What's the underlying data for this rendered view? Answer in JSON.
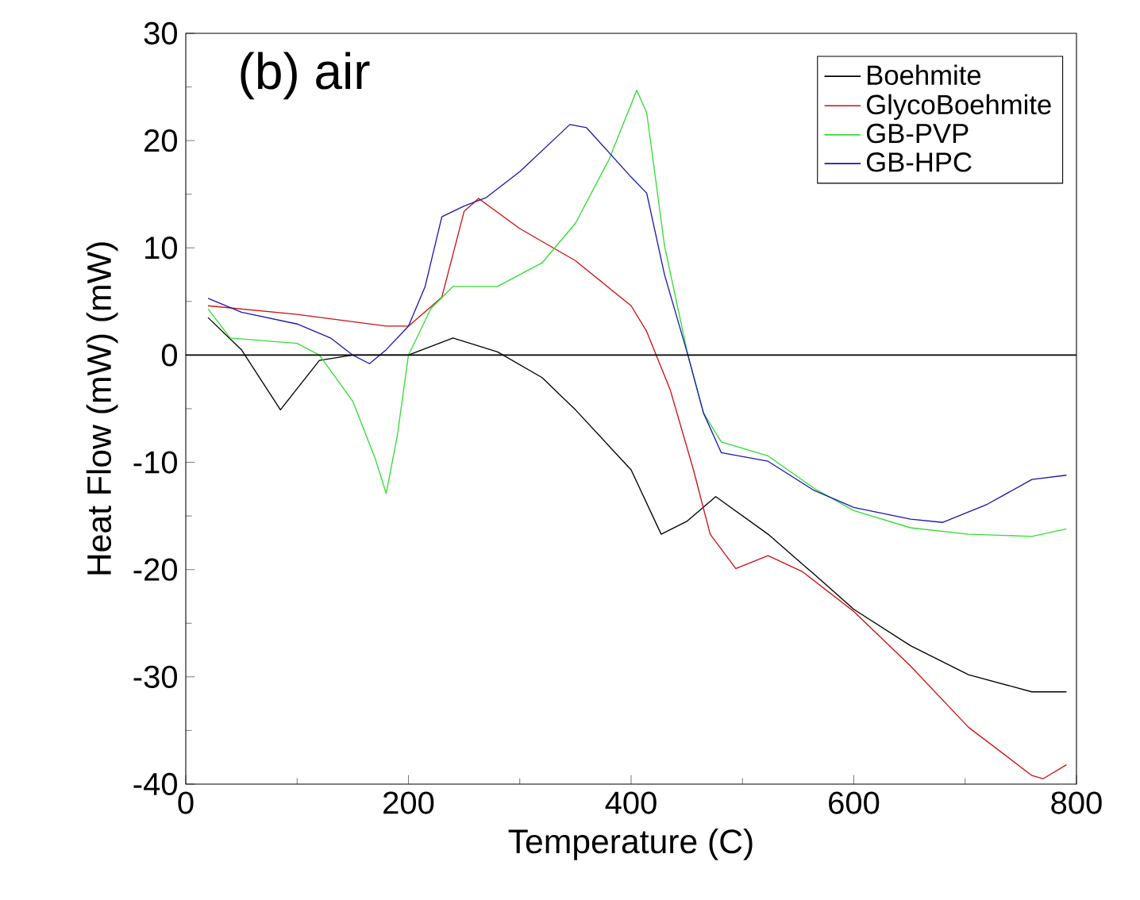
{
  "chart_data": {
    "type": "line",
    "xlabel": "Temperature (C)",
    "ylabel": "Heat Flow (mW) (mW)",
    "annotations": [
      "(b)  air"
    ],
    "xlim": [
      0,
      800
    ],
    "xticks": [
      0,
      200,
      400,
      600,
      800
    ],
    "ylim": [
      -40,
      30
    ],
    "yticks": [
      -40,
      -30,
      -20,
      -10,
      0,
      10,
      20,
      30
    ],
    "grid": false,
    "legend": "top right",
    "marker": "none",
    "line_style": "solid",
    "ref_lines": [
      {
        "axis": "y",
        "value": 0,
        "color": "#000000"
      }
    ],
    "series": [
      {
        "name": "Boehmite",
        "color": "#000000",
        "x": [
          20,
          50,
          85,
          120,
          150,
          200,
          240,
          280,
          320,
          350,
          400,
          427,
          450,
          476,
          523,
          564,
          600,
          651,
          703,
          760,
          791
        ],
        "values": [
          3.5,
          0.5,
          -5.1,
          -0.5,
          0,
          0,
          1.6,
          0.3,
          -2.1,
          -5.1,
          -10.7,
          -16.7,
          -15.5,
          -13.2,
          -16.7,
          -20.4,
          -23.7,
          -27.1,
          -29.8,
          -31.4,
          -31.4
        ]
      },
      {
        "name": "GlycoBoehmite",
        "color": "#cc1111",
        "x": [
          20,
          100,
          180,
          200,
          230,
          250,
          263,
          300,
          350,
          400,
          414,
          435,
          456,
          471,
          494,
          523,
          554,
          600,
          651,
          703,
          760,
          770,
          791
        ],
        "values": [
          4.6,
          3.8,
          2.7,
          2.7,
          5.4,
          13.4,
          14.6,
          11.8,
          8.8,
          4.6,
          2.2,
          -3.2,
          -10.7,
          -16.7,
          -19.9,
          -18.7,
          -20.2,
          -23.9,
          -29.0,
          -34.7,
          -39.2,
          -39.5,
          -38.2
        ]
      },
      {
        "name": "GB-PVP",
        "color": "#33dd33",
        "x": [
          20,
          40,
          100,
          120,
          150,
          170,
          180,
          190,
          200,
          220,
          240,
          280,
          320,
          350,
          380,
          405,
          414,
          430,
          451,
          465,
          481,
          523,
          564,
          600,
          651,
          703,
          760,
          791
        ],
        "values": [
          4.3,
          1.6,
          1.1,
          0,
          -4.3,
          -9.6,
          -12.9,
          -7.5,
          0,
          4.3,
          6.4,
          6.4,
          8.6,
          12.3,
          18.2,
          24.7,
          22.6,
          10.2,
          0,
          -5.4,
          -8.1,
          -9.4,
          -12.4,
          -14.5,
          -16.1,
          -16.7,
          -16.9,
          -16.2
        ]
      },
      {
        "name": "GB-HPC",
        "color": "#1a1aaa",
        "x": [
          20,
          50,
          100,
          130,
          150,
          165,
          180,
          200,
          215,
          230,
          250,
          270,
          300,
          345,
          360,
          400,
          414,
          430,
          451,
          465,
          481,
          523,
          564,
          600,
          651,
          680,
          720,
          760,
          791
        ],
        "values": [
          5.3,
          4.0,
          2.9,
          1.6,
          0,
          -0.8,
          0.5,
          2.7,
          6.4,
          12.9,
          13.9,
          14.7,
          17.1,
          21.5,
          21.2,
          16.6,
          15.1,
          7.5,
          0,
          -5.4,
          -9.1,
          -9.9,
          -12.6,
          -14.2,
          -15.3,
          -15.6,
          -13.9,
          -11.6,
          -11.2
        ]
      }
    ]
  }
}
